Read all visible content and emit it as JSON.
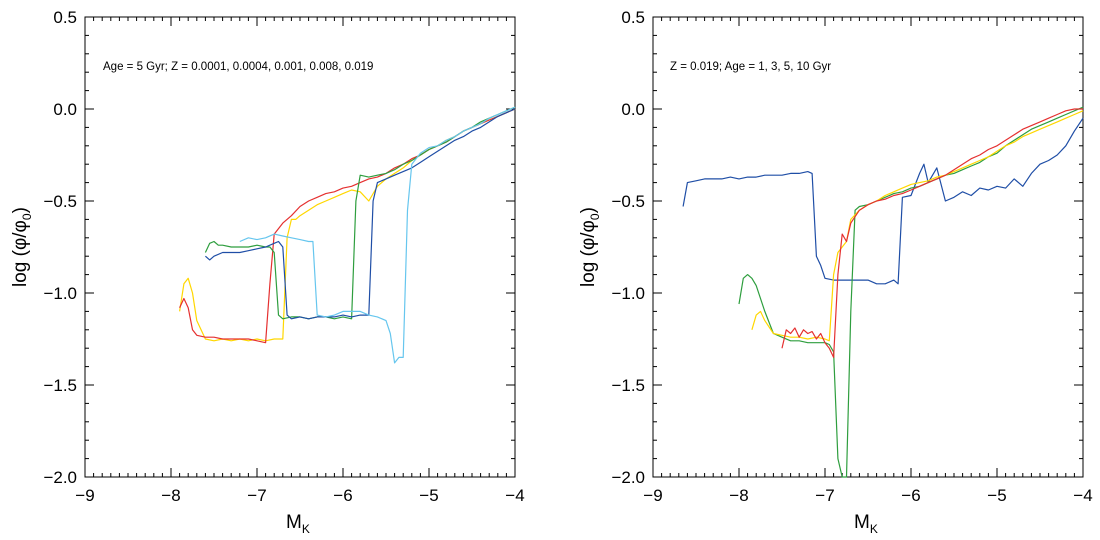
{
  "chart_data": [
    {
      "type": "line",
      "annotation": "Age = 5 Gyr; Z = 0.0001, 0.0004, 0.001, 0.008, 0.019",
      "xlabel": "M",
      "xlabel_sub": "K",
      "ylabel": "log (φ/φ",
      "ylabel_sub": "0",
      "ylabel_end": ")",
      "xlim": [
        -9,
        -4
      ],
      "ylim": [
        -2.0,
        0.5
      ],
      "xticks": [
        -9,
        -8,
        -7,
        -6,
        -5,
        -4
      ],
      "xtick_labels": [
        "−9",
        "−8",
        "−7",
        "−6",
        "−5",
        "−4"
      ],
      "yticks": [
        -2.0,
        -1.5,
        -1.0,
        -0.5,
        0.0,
        0.5
      ],
      "ytick_labels": [
        "−2.0",
        "−1.5",
        "−1.0",
        "−0.5",
        "0.0",
        "0.5"
      ],
      "grid": false,
      "series": [
        {
          "color": "#ffd700",
          "x": [
            -7.9,
            -7.85,
            -7.8,
            -7.75,
            -7.7,
            -7.6,
            -7.5,
            -7.4,
            -7.3,
            -7.2,
            -7.1,
            -7.0,
            -6.9,
            -6.8,
            -6.7,
            -6.65,
            -6.6,
            -6.55,
            -6.5,
            -6.4,
            -6.3,
            -6.2,
            -6.1,
            -6.0,
            -5.9,
            -5.8,
            -5.7,
            -5.6,
            -5.5,
            -5.4,
            -5.3,
            -5.2,
            -5.1,
            -5.0,
            -4.9,
            -4.8,
            -4.7,
            -4.6,
            -4.5,
            -4.4,
            -4.3,
            -4.2,
            -4.1,
            -4.0
          ],
          "y": [
            -1.1,
            -0.95,
            -0.92,
            -1.0,
            -1.15,
            -1.25,
            -1.26,
            -1.25,
            -1.26,
            -1.25,
            -1.26,
            -1.25,
            -1.26,
            -1.25,
            -1.25,
            -0.7,
            -0.6,
            -0.6,
            -0.58,
            -0.55,
            -0.52,
            -0.5,
            -0.48,
            -0.46,
            -0.44,
            -0.45,
            -0.5,
            -0.42,
            -0.38,
            -0.35,
            -0.32,
            -0.28,
            -0.25,
            -0.22,
            -0.2,
            -0.17,
            -0.15,
            -0.12,
            -0.1,
            -0.08,
            -0.06,
            -0.04,
            -0.02,
            0.0
          ]
        },
        {
          "color": "#e53030",
          "x": [
            -7.9,
            -7.85,
            -7.8,
            -7.75,
            -7.7,
            -7.6,
            -7.5,
            -7.4,
            -7.3,
            -7.2,
            -7.1,
            -7.0,
            -6.9,
            -6.85,
            -6.8,
            -6.7,
            -6.6,
            -6.5,
            -6.4,
            -6.3,
            -6.2,
            -6.1,
            -6.0,
            -5.9,
            -5.8,
            -5.7,
            -5.6,
            -5.5,
            -5.4,
            -5.3,
            -5.2,
            -5.1,
            -5.0,
            -4.9,
            -4.8,
            -4.7,
            -4.6,
            -4.5,
            -4.4,
            -4.3,
            -4.2,
            -4.1,
            -4.0
          ],
          "y": [
            -1.08,
            -1.03,
            -1.08,
            -1.2,
            -1.23,
            -1.24,
            -1.24,
            -1.25,
            -1.25,
            -1.25,
            -1.25,
            -1.26,
            -1.27,
            -0.95,
            -0.68,
            -0.62,
            -0.58,
            -0.53,
            -0.5,
            -0.48,
            -0.46,
            -0.45,
            -0.43,
            -0.42,
            -0.4,
            -0.38,
            -0.37,
            -0.35,
            -0.32,
            -0.3,
            -0.27,
            -0.25,
            -0.22,
            -0.2,
            -0.18,
            -0.15,
            -0.12,
            -0.1,
            -0.08,
            -0.06,
            -0.04,
            -0.02,
            0.0
          ]
        },
        {
          "color": "#2e9e3e",
          "x": [
            -7.6,
            -7.55,
            -7.5,
            -7.45,
            -7.4,
            -7.3,
            -7.2,
            -7.1,
            -7.0,
            -6.9,
            -6.85,
            -6.8,
            -6.75,
            -6.7,
            -6.6,
            -6.5,
            -6.4,
            -6.3,
            -6.2,
            -6.1,
            -6.0,
            -5.9,
            -5.85,
            -5.8,
            -5.7,
            -5.6,
            -5.5,
            -5.4,
            -5.3,
            -5.2,
            -5.1,
            -5.0,
            -4.9,
            -4.8,
            -4.7,
            -4.6,
            -4.5,
            -4.4,
            -4.3,
            -4.2,
            -4.1,
            -4.0
          ],
          "y": [
            -0.78,
            -0.73,
            -0.72,
            -0.74,
            -0.74,
            -0.75,
            -0.75,
            -0.75,
            -0.74,
            -0.75,
            -0.75,
            -0.78,
            -1.12,
            -1.14,
            -1.13,
            -1.13,
            -1.14,
            -1.13,
            -1.13,
            -1.14,
            -1.13,
            -1.14,
            -0.5,
            -0.36,
            -0.37,
            -0.36,
            -0.35,
            -0.33,
            -0.3,
            -0.28,
            -0.25,
            -0.22,
            -0.2,
            -0.18,
            -0.15,
            -0.12,
            -0.1,
            -0.07,
            -0.05,
            -0.03,
            -0.01,
            0.01
          ]
        },
        {
          "color": "#1f4ea6",
          "x": [
            -7.6,
            -7.55,
            -7.5,
            -7.4,
            -7.3,
            -7.2,
            -7.1,
            -7.0,
            -6.9,
            -6.8,
            -6.75,
            -6.7,
            -6.65,
            -6.6,
            -6.5,
            -6.4,
            -6.3,
            -6.2,
            -6.1,
            -6.0,
            -5.9,
            -5.8,
            -5.7,
            -5.65,
            -5.6,
            -5.5,
            -5.4,
            -5.3,
            -5.2,
            -5.1,
            -5.0,
            -4.9,
            -4.8,
            -4.7,
            -4.6,
            -4.5,
            -4.4,
            -4.3,
            -4.2,
            -4.1,
            -4.0
          ],
          "y": [
            -0.8,
            -0.82,
            -0.8,
            -0.78,
            -0.78,
            -0.78,
            -0.77,
            -0.76,
            -0.75,
            -0.73,
            -0.72,
            -0.75,
            -1.12,
            -1.14,
            -1.13,
            -1.14,
            -1.13,
            -1.13,
            -1.13,
            -1.12,
            -1.13,
            -1.12,
            -1.12,
            -0.5,
            -0.4,
            -0.38,
            -0.36,
            -0.34,
            -0.32,
            -0.29,
            -0.26,
            -0.23,
            -0.2,
            -0.17,
            -0.15,
            -0.12,
            -0.1,
            -0.07,
            -0.04,
            -0.02,
            0.0
          ]
        },
        {
          "color": "#66c6ee",
          "x": [
            -7.2,
            -7.1,
            -7.0,
            -6.9,
            -6.8,
            -6.7,
            -6.6,
            -6.5,
            -6.4,
            -6.35,
            -6.3,
            -6.2,
            -6.1,
            -6.0,
            -5.9,
            -5.8,
            -5.7,
            -5.6,
            -5.5,
            -5.45,
            -5.4,
            -5.35,
            -5.3,
            -5.25,
            -5.2,
            -5.1,
            -5.0,
            -4.9,
            -4.8,
            -4.7,
            -4.6,
            -4.5,
            -4.4,
            -4.3,
            -4.2,
            -4.1,
            -4.0
          ],
          "y": [
            -0.72,
            -0.7,
            -0.71,
            -0.7,
            -0.68,
            -0.69,
            -0.7,
            -0.71,
            -0.72,
            -0.72,
            -1.12,
            -1.13,
            -1.12,
            -1.1,
            -1.1,
            -1.1,
            -1.12,
            -1.13,
            -1.15,
            -1.22,
            -1.38,
            -1.35,
            -1.35,
            -0.55,
            -0.3,
            -0.24,
            -0.21,
            -0.2,
            -0.17,
            -0.15,
            -0.12,
            -0.1,
            -0.08,
            -0.05,
            -0.03,
            -0.01,
            0.01
          ]
        }
      ]
    },
    {
      "type": "line",
      "annotation": "Z = 0.019; Age = 1, 3, 5, 10 Gyr",
      "xlabel": "M",
      "xlabel_sub": "K",
      "ylabel": "log (φ/φ",
      "ylabel_sub": "0",
      "ylabel_end": ")",
      "xlim": [
        -9,
        -4
      ],
      "ylim": [
        -2.0,
        0.5
      ],
      "xticks": [
        -9,
        -8,
        -7,
        -6,
        -5,
        -4
      ],
      "xtick_labels": [
        "−9",
        "−8",
        "−7",
        "−6",
        "−5",
        "−4"
      ],
      "yticks": [
        -2.0,
        -1.5,
        -1.0,
        -0.5,
        0.0,
        0.5
      ],
      "ytick_labels": [
        "−2.0",
        "−1.5",
        "−1.0",
        "−0.5",
        "0.0",
        "0.5"
      ],
      "grid": false,
      "series": [
        {
          "color": "#1f4ea6",
          "x": [
            -8.65,
            -8.6,
            -8.5,
            -8.4,
            -8.3,
            -8.2,
            -8.1,
            -8.0,
            -7.9,
            -7.8,
            -7.7,
            -7.6,
            -7.5,
            -7.4,
            -7.3,
            -7.2,
            -7.15,
            -7.1,
            -7.05,
            -7.0,
            -6.9,
            -6.8,
            -6.7,
            -6.6,
            -6.5,
            -6.4,
            -6.3,
            -6.2,
            -6.15,
            -6.1,
            -6.0,
            -5.9,
            -5.85,
            -5.8,
            -5.7,
            -5.6,
            -5.5,
            -5.4,
            -5.3,
            -5.2,
            -5.1,
            -5.0,
            -4.9,
            -4.8,
            -4.7,
            -4.6,
            -4.5,
            -4.4,
            -4.3,
            -4.2,
            -4.1,
            -4.0
          ],
          "y": [
            -0.53,
            -0.4,
            -0.39,
            -0.38,
            -0.38,
            -0.38,
            -0.37,
            -0.38,
            -0.37,
            -0.37,
            -0.36,
            -0.36,
            -0.36,
            -0.35,
            -0.35,
            -0.34,
            -0.35,
            -0.8,
            -0.85,
            -0.92,
            -0.93,
            -0.93,
            -0.93,
            -0.93,
            -0.93,
            -0.95,
            -0.95,
            -0.93,
            -0.95,
            -0.48,
            -0.47,
            -0.35,
            -0.3,
            -0.4,
            -0.32,
            -0.5,
            -0.48,
            -0.45,
            -0.47,
            -0.43,
            -0.44,
            -0.42,
            -0.43,
            -0.38,
            -0.42,
            -0.35,
            -0.3,
            -0.28,
            -0.25,
            -0.2,
            -0.12,
            -0.05
          ]
        },
        {
          "color": "#2e9e3e",
          "x": [
            -8.0,
            -7.95,
            -7.9,
            -7.85,
            -7.8,
            -7.7,
            -7.6,
            -7.5,
            -7.4,
            -7.3,
            -7.2,
            -7.1,
            -7.0,
            -6.95,
            -6.9,
            -6.85,
            -6.8,
            -6.75,
            -6.7,
            -6.65,
            -6.6,
            -6.5,
            -6.4,
            -6.3,
            -6.2,
            -6.1,
            -6.0,
            -5.9,
            -5.8,
            -5.7,
            -5.6,
            -5.5,
            -5.4,
            -5.3,
            -5.2,
            -5.1,
            -5.0,
            -4.9,
            -4.8,
            -4.7,
            -4.6,
            -4.5,
            -4.4,
            -4.3,
            -4.2,
            -4.1,
            -4.0
          ],
          "y": [
            -1.06,
            -0.92,
            -0.9,
            -0.92,
            -0.96,
            -1.1,
            -1.22,
            -1.24,
            -1.26,
            -1.26,
            -1.27,
            -1.27,
            -1.27,
            -1.28,
            -1.32,
            -1.9,
            -2.0,
            -2.0,
            -1.1,
            -0.55,
            -0.53,
            -0.52,
            -0.5,
            -0.48,
            -0.46,
            -0.45,
            -0.43,
            -0.42,
            -0.4,
            -0.38,
            -0.36,
            -0.35,
            -0.33,
            -0.31,
            -0.29,
            -0.26,
            -0.24,
            -0.2,
            -0.17,
            -0.14,
            -0.11,
            -0.09,
            -0.07,
            -0.05,
            -0.03,
            -0.01,
            0.01
          ]
        },
        {
          "color": "#ffd700",
          "x": [
            -7.85,
            -7.8,
            -7.75,
            -7.7,
            -7.6,
            -7.5,
            -7.4,
            -7.3,
            -7.2,
            -7.1,
            -7.0,
            -6.95,
            -6.9,
            -6.85,
            -6.8,
            -6.75,
            -6.7,
            -6.6,
            -6.5,
            -6.4,
            -6.3,
            -6.2,
            -6.1,
            -6.0,
            -5.9,
            -5.8,
            -5.7,
            -5.6,
            -5.5,
            -5.4,
            -5.3,
            -5.2,
            -5.1,
            -5.0,
            -4.9,
            -4.8,
            -4.7,
            -4.6,
            -4.5,
            -4.4,
            -4.3,
            -4.2,
            -4.1,
            -4.0
          ],
          "y": [
            -1.2,
            -1.12,
            -1.1,
            -1.15,
            -1.22,
            -1.23,
            -1.24,
            -1.24,
            -1.25,
            -1.24,
            -1.25,
            -1.26,
            -0.9,
            -0.78,
            -0.75,
            -0.72,
            -0.6,
            -0.55,
            -0.52,
            -0.5,
            -0.47,
            -0.45,
            -0.43,
            -0.41,
            -0.4,
            -0.39,
            -0.37,
            -0.36,
            -0.34,
            -0.32,
            -0.3,
            -0.28,
            -0.26,
            -0.23,
            -0.2,
            -0.18,
            -0.15,
            -0.13,
            -0.11,
            -0.09,
            -0.07,
            -0.05,
            -0.03,
            -0.01
          ]
        },
        {
          "color": "#e53030",
          "x": [
            -7.5,
            -7.45,
            -7.4,
            -7.35,
            -7.3,
            -7.25,
            -7.2,
            -7.15,
            -7.1,
            -7.05,
            -7.0,
            -6.95,
            -6.9,
            -6.85,
            -6.8,
            -6.75,
            -6.7,
            -6.6,
            -6.5,
            -6.4,
            -6.3,
            -6.2,
            -6.1,
            -6.0,
            -5.9,
            -5.8,
            -5.7,
            -5.6,
            -5.5,
            -5.4,
            -5.3,
            -5.2,
            -5.1,
            -5.0,
            -4.9,
            -4.8,
            -4.7,
            -4.6,
            -4.5,
            -4.4,
            -4.3,
            -4.2,
            -4.1,
            -4.0
          ],
          "y": [
            -1.3,
            -1.2,
            -1.22,
            -1.19,
            -1.24,
            -1.2,
            -1.22,
            -1.21,
            -1.25,
            -1.22,
            -1.27,
            -1.3,
            -1.35,
            -0.9,
            -0.68,
            -0.72,
            -0.62,
            -0.55,
            -0.52,
            -0.5,
            -0.49,
            -0.47,
            -0.46,
            -0.44,
            -0.42,
            -0.4,
            -0.38,
            -0.36,
            -0.33,
            -0.3,
            -0.27,
            -0.25,
            -0.22,
            -0.2,
            -0.17,
            -0.14,
            -0.11,
            -0.09,
            -0.07,
            -0.05,
            -0.03,
            -0.01,
            0.0,
            0.0
          ]
        }
      ]
    }
  ]
}
